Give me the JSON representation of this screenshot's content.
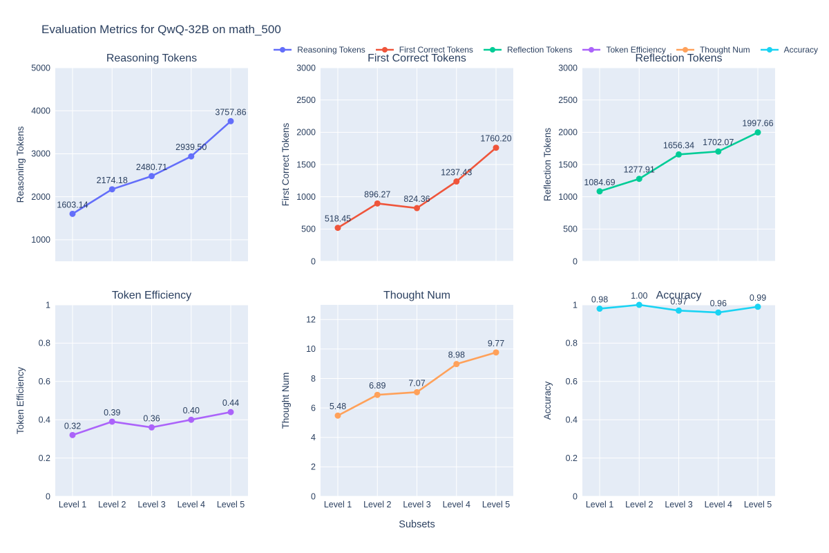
{
  "title": "Evaluation Metrics for QwQ-32B on math_500",
  "xaxis_title": "Subsets",
  "categories": [
    "Level 1",
    "Level 2",
    "Level 3",
    "Level 4",
    "Level 5"
  ],
  "legend": {
    "position": "top-right horizontal",
    "items": [
      {
        "label": "Reasoning Tokens",
        "color": "#636EFA"
      },
      {
        "label": "First Correct Tokens",
        "color": "#EF553B"
      },
      {
        "label": "Reflection Tokens",
        "color": "#00CC96"
      },
      {
        "label": "Token Efficiency",
        "color": "#AB63FA"
      },
      {
        "label": "Thought Num",
        "color": "#FFA15A"
      },
      {
        "label": "Accuracy",
        "color": "#19D3F3"
      }
    ]
  },
  "colors": {
    "text": "#2a3f5f",
    "plot_background": "#E5ECF6",
    "grid": "#ffffff",
    "page_background": "#ffffff"
  },
  "chart_data": [
    {
      "type": "line",
      "title": "Reasoning Tokens",
      "ylabel": "Reasoning Tokens",
      "color": "#636EFA",
      "categories": [
        "Level 1",
        "Level 2",
        "Level 3",
        "Level 4",
        "Level 5"
      ],
      "values": [
        1603.14,
        2174.18,
        2480.71,
        2939.5,
        3757.86
      ],
      "point_labels": [
        "1603.14",
        "2174.18",
        "2480.71",
        "2939.50",
        "3757.86"
      ],
      "ylim": [
        500,
        5000
      ],
      "yticks": [
        1000,
        2000,
        3000,
        4000,
        5000
      ],
      "grid": true,
      "show_x_tick_labels": false
    },
    {
      "type": "line",
      "title": "First Correct Tokens",
      "ylabel": "First Correct Tokens",
      "color": "#EF553B",
      "categories": [
        "Level 1",
        "Level 2",
        "Level 3",
        "Level 4",
        "Level 5"
      ],
      "values": [
        518.45,
        896.27,
        824.36,
        1237.43,
        1760.2
      ],
      "point_labels": [
        "518.45",
        "896.27",
        "824.36",
        "1237.43",
        "1760.20"
      ],
      "ylim": [
        0,
        3000
      ],
      "yticks": [
        0,
        500,
        1000,
        1500,
        2000,
        2500,
        3000
      ],
      "grid": true,
      "show_x_tick_labels": false
    },
    {
      "type": "line",
      "title": "Reflection Tokens",
      "ylabel": "Reflection Tokens",
      "color": "#00CC96",
      "categories": [
        "Level 1",
        "Level 2",
        "Level 3",
        "Level 4",
        "Level 5"
      ],
      "values": [
        1084.69,
        1277.91,
        1656.34,
        1702.07,
        1997.66
      ],
      "point_labels": [
        "1084.69",
        "1277.91",
        "1656.34",
        "1702.07",
        "1997.66"
      ],
      "ylim": [
        0,
        3000
      ],
      "yticks": [
        0,
        500,
        1000,
        1500,
        2000,
        2500,
        3000
      ],
      "grid": true,
      "show_x_tick_labels": false
    },
    {
      "type": "line",
      "title": "Token Efficiency",
      "ylabel": "Token Efficiency",
      "color": "#AB63FA",
      "categories": [
        "Level 1",
        "Level 2",
        "Level 3",
        "Level 4",
        "Level 5"
      ],
      "values": [
        0.32,
        0.39,
        0.36,
        0.4,
        0.44
      ],
      "point_labels": [
        "0.32",
        "0.39",
        "0.36",
        "0.40",
        "0.44"
      ],
      "ylim": [
        0,
        1
      ],
      "yticks": [
        0,
        0.2,
        0.4,
        0.6,
        0.8,
        1
      ],
      "grid": true,
      "show_x_tick_labels": true
    },
    {
      "type": "line",
      "title": "Thought Num",
      "ylabel": "Thought Num",
      "color": "#FFA15A",
      "categories": [
        "Level 1",
        "Level 2",
        "Level 3",
        "Level 4",
        "Level 5"
      ],
      "values": [
        5.48,
        6.89,
        7.07,
        8.98,
        9.77
      ],
      "point_labels": [
        "5.48",
        "6.89",
        "7.07",
        "8.98",
        "9.77"
      ],
      "ylim": [
        0,
        13
      ],
      "yticks": [
        0,
        2,
        4,
        6,
        8,
        10,
        12
      ],
      "grid": true,
      "show_x_tick_labels": true
    },
    {
      "type": "line",
      "title": "Accuracy",
      "ylabel": "Accuracy",
      "color": "#19D3F3",
      "categories": [
        "Level 1",
        "Level 2",
        "Level 3",
        "Level 4",
        "Level 5"
      ],
      "values": [
        0.98,
        1.0,
        0.97,
        0.96,
        0.99
      ],
      "point_labels": [
        "0.98",
        "1.00",
        "0.97",
        "0.96",
        "0.99"
      ],
      "ylim": [
        0,
        1
      ],
      "yticks": [
        0,
        0.2,
        0.4,
        0.6,
        0.8,
        1
      ],
      "grid": true,
      "show_x_tick_labels": true
    }
  ]
}
